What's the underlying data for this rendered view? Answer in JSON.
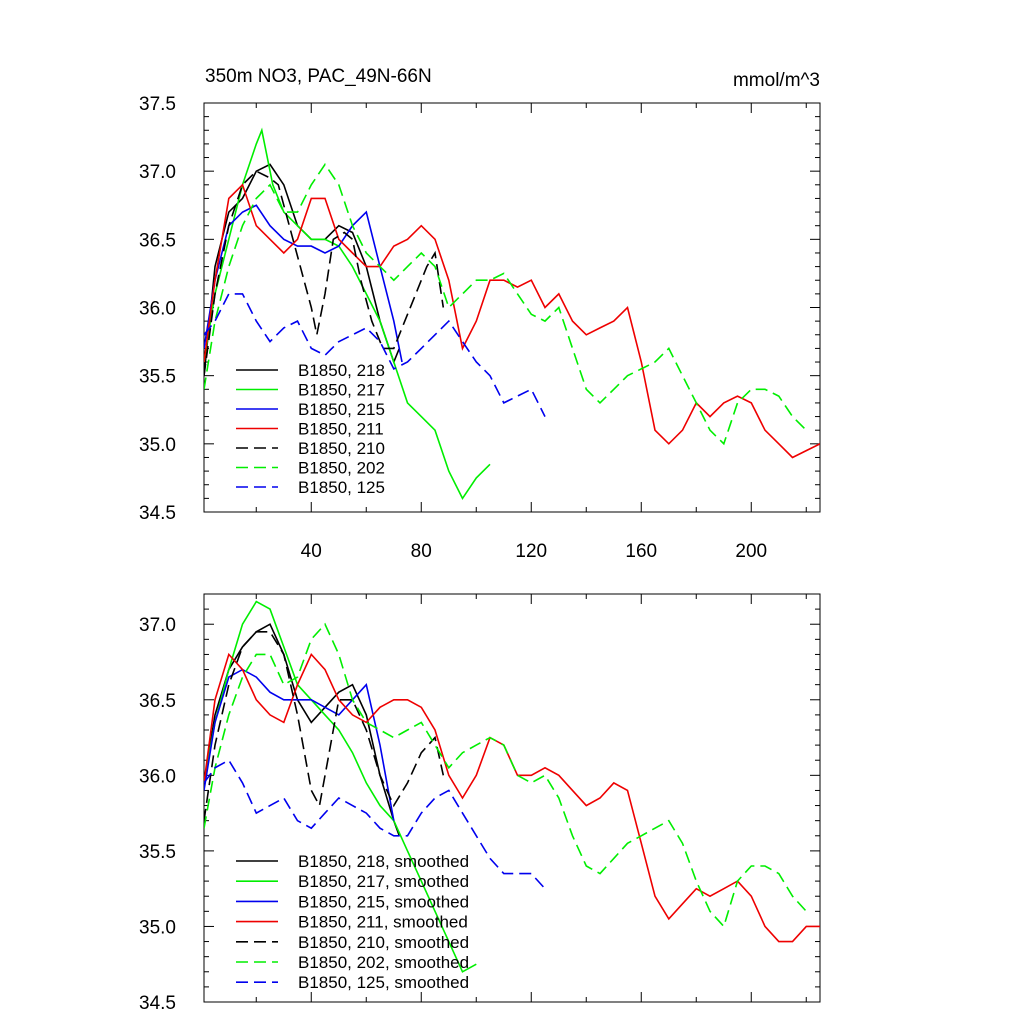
{
  "chart_data": [
    {
      "type": "line",
      "title_left": "350m NO3, PAC_49N-66N",
      "title_right": "mmol/m^3",
      "xlim": [
        1,
        225
      ],
      "ylim": [
        34.5,
        37.5
      ],
      "y_ticks": [
        34.5,
        35.0,
        35.5,
        36.0,
        36.5,
        37.0,
        37.5
      ],
      "y_tick_labels": [
        "34.5",
        "35.0",
        "35.5",
        "36.0",
        "36.5",
        "37.0",
        "37.5"
      ],
      "x_ticks": [
        40,
        80,
        120,
        160,
        200
      ],
      "x_tick_labels": [
        "40",
        "80",
        "120",
        "160",
        "200"
      ],
      "legend_position": "lower-left",
      "series": [
        {
          "name": "B1850, 218",
          "color": "#000000",
          "dash": "solid",
          "x": [
            1,
            5,
            10,
            15,
            20,
            25,
            30,
            35,
            40,
            45,
            50,
            55,
            60,
            65,
            70,
            72
          ],
          "y": [
            35.5,
            36.3,
            36.7,
            36.8,
            37.0,
            37.05,
            36.9,
            36.6,
            36.5,
            36.5,
            36.6,
            36.55,
            36.3,
            35.9,
            35.6,
            35.7
          ]
        },
        {
          "name": "B1850, 217",
          "color": "#00ee00",
          "dash": "solid",
          "x": [
            1,
            5,
            10,
            15,
            20,
            22,
            26,
            30,
            35,
            40,
            45,
            50,
            55,
            60,
            65,
            70,
            75,
            80,
            85,
            90,
            95,
            100,
            105
          ],
          "y": [
            35.6,
            36.1,
            36.5,
            36.9,
            37.2,
            37.3,
            36.9,
            36.7,
            36.6,
            36.5,
            36.5,
            36.45,
            36.3,
            36.1,
            35.9,
            35.6,
            35.3,
            35.2,
            35.1,
            34.8,
            34.6,
            34.75,
            34.85
          ]
        },
        {
          "name": "B1850, 215",
          "color": "#0000ee",
          "dash": "solid",
          "x": [
            1,
            5,
            10,
            15,
            20,
            25,
            30,
            35,
            40,
            45,
            50,
            55,
            60,
            65,
            70,
            73
          ],
          "y": [
            35.7,
            36.2,
            36.6,
            36.7,
            36.75,
            36.6,
            36.5,
            36.45,
            36.45,
            36.4,
            36.45,
            36.6,
            36.7,
            36.3,
            35.9,
            35.6
          ]
        },
        {
          "name": "B1850, 211",
          "color": "#ee0000",
          "dash": "solid",
          "x": [
            1,
            5,
            10,
            15,
            20,
            25,
            30,
            35,
            40,
            45,
            50,
            55,
            60,
            65,
            70,
            75,
            80,
            85,
            90,
            95,
            100,
            105,
            110,
            115,
            120,
            125,
            130,
            135,
            140,
            145,
            150,
            155,
            160,
            165,
            170,
            175,
            180,
            185,
            190,
            195,
            200,
            205,
            210,
            215,
            220,
            225
          ],
          "y": [
            35.6,
            36.2,
            36.8,
            36.9,
            36.6,
            36.5,
            36.4,
            36.5,
            36.8,
            36.8,
            36.5,
            36.4,
            36.3,
            36.3,
            36.45,
            36.5,
            36.6,
            36.5,
            36.2,
            35.7,
            35.9,
            36.2,
            36.2,
            36.15,
            36.2,
            36.0,
            36.1,
            35.9,
            35.8,
            35.85,
            35.9,
            36.0,
            35.6,
            35.1,
            35.0,
            35.1,
            35.3,
            35.2,
            35.3,
            35.35,
            35.3,
            35.1,
            35.0,
            34.9,
            34.95,
            35.0
          ]
        },
        {
          "name": "B1850, 210",
          "color": "#000000",
          "dash": "dashed",
          "x": [
            1,
            5,
            10,
            15,
            20,
            25,
            28,
            32,
            36,
            40,
            42,
            45,
            48,
            52,
            55,
            58,
            62,
            66,
            70,
            74,
            78,
            82,
            85,
            88
          ],
          "y": [
            35.5,
            36.1,
            36.6,
            36.9,
            37.0,
            36.95,
            36.9,
            36.6,
            36.3,
            36.0,
            35.8,
            36.1,
            36.5,
            36.55,
            36.5,
            36.2,
            35.9,
            35.7,
            35.7,
            35.9,
            36.1,
            36.3,
            36.4,
            36.0
          ]
        },
        {
          "name": "B1850, 202",
          "color": "#00ee00",
          "dash": "dashed",
          "x": [
            1,
            5,
            10,
            15,
            20,
            25,
            30,
            35,
            40,
            45,
            50,
            55,
            60,
            65,
            70,
            75,
            80,
            85,
            90,
            95,
            100,
            105,
            110,
            115,
            120,
            125,
            130,
            135,
            140,
            145,
            150,
            155,
            160,
            165,
            170,
            175,
            180,
            185,
            190,
            195,
            200,
            205,
            210,
            215,
            220
          ],
          "y": [
            35.4,
            35.9,
            36.3,
            36.6,
            36.8,
            36.9,
            36.7,
            36.7,
            36.9,
            37.05,
            36.9,
            36.6,
            36.4,
            36.3,
            36.2,
            36.3,
            36.4,
            36.3,
            36.0,
            36.1,
            36.2,
            36.2,
            36.25,
            36.1,
            35.95,
            35.9,
            36.0,
            35.7,
            35.4,
            35.3,
            35.4,
            35.5,
            35.55,
            35.6,
            35.7,
            35.5,
            35.3,
            35.1,
            35.0,
            35.3,
            35.4,
            35.4,
            35.35,
            35.2,
            35.1
          ]
        },
        {
          "name": "B1850, 125",
          "color": "#0000ee",
          "dash": "dashed",
          "x": [
            1,
            5,
            10,
            15,
            20,
            25,
            30,
            35,
            40,
            45,
            50,
            55,
            60,
            65,
            70,
            75,
            80,
            85,
            90,
            95,
            100,
            105,
            110,
            115,
            120,
            125
          ],
          "y": [
            35.8,
            35.9,
            36.1,
            36.1,
            35.9,
            35.75,
            35.85,
            35.9,
            35.7,
            35.65,
            35.75,
            35.8,
            35.85,
            35.75,
            35.55,
            35.6,
            35.7,
            35.8,
            35.9,
            35.75,
            35.6,
            35.5,
            35.3,
            35.35,
            35.4,
            35.2
          ]
        }
      ]
    },
    {
      "type": "line",
      "xlim": [
        1,
        225
      ],
      "ylim": [
        34.5,
        37.2
      ],
      "y_ticks": [
        34.5,
        35.0,
        35.5,
        36.0,
        36.5,
        37.0
      ],
      "y_tick_labels": [
        "34.5",
        "35.0",
        "35.5",
        "36.0",
        "36.5",
        "37.0"
      ],
      "x_ticks": [
        40,
        80,
        120,
        160,
        200
      ],
      "legend_position": "lower-left",
      "series": [
        {
          "name": "B1850, 218, smoothed",
          "color": "#000000",
          "dash": "solid",
          "x": [
            1,
            5,
            10,
            15,
            20,
            25,
            30,
            35,
            40,
            45,
            50,
            55,
            60,
            65,
            70,
            72
          ],
          "y": [
            35.95,
            36.4,
            36.7,
            36.85,
            36.95,
            37.0,
            36.8,
            36.5,
            36.35,
            36.45,
            36.55,
            36.6,
            36.4,
            36.0,
            35.7,
            35.6
          ]
        },
        {
          "name": "B1850, 217, smoothed",
          "color": "#00ee00",
          "dash": "solid",
          "x": [
            1,
            5,
            10,
            15,
            20,
            25,
            30,
            35,
            40,
            45,
            50,
            55,
            60,
            65,
            70,
            75,
            80,
            85,
            90,
            95,
            100
          ],
          "y": [
            35.95,
            36.35,
            36.7,
            37.0,
            37.15,
            37.1,
            36.85,
            36.6,
            36.5,
            36.4,
            36.3,
            36.15,
            35.95,
            35.8,
            35.7,
            35.5,
            35.3,
            35.1,
            34.9,
            34.7,
            34.75
          ]
        },
        {
          "name": "B1850, 215, smoothed",
          "color": "#0000ee",
          "dash": "solid",
          "x": [
            1,
            5,
            10,
            15,
            20,
            25,
            30,
            35,
            40,
            45,
            50,
            55,
            60,
            65,
            70
          ],
          "y": [
            35.9,
            36.35,
            36.65,
            36.7,
            36.65,
            36.55,
            36.5,
            36.5,
            36.5,
            36.45,
            36.4,
            36.5,
            36.6,
            36.2,
            35.7
          ]
        },
        {
          "name": "B1850, 211, smoothed",
          "color": "#ee0000",
          "dash": "solid",
          "x": [
            1,
            5,
            10,
            15,
            20,
            25,
            30,
            35,
            40,
            45,
            50,
            55,
            60,
            65,
            70,
            75,
            80,
            85,
            90,
            95,
            100,
            105,
            110,
            115,
            120,
            125,
            130,
            135,
            140,
            145,
            150,
            155,
            160,
            165,
            170,
            175,
            180,
            185,
            190,
            195,
            200,
            205,
            210,
            215,
            220,
            225
          ],
          "y": [
            35.95,
            36.5,
            36.8,
            36.7,
            36.5,
            36.4,
            36.35,
            36.6,
            36.8,
            36.7,
            36.5,
            36.4,
            36.35,
            36.45,
            36.5,
            36.5,
            36.45,
            36.3,
            36.0,
            35.85,
            36.0,
            36.25,
            36.2,
            36.0,
            36.0,
            36.05,
            36.0,
            35.9,
            35.8,
            35.85,
            35.95,
            35.9,
            35.55,
            35.2,
            35.05,
            35.15,
            35.25,
            35.2,
            35.25,
            35.3,
            35.2,
            35.0,
            34.9,
            34.9,
            35.0,
            35.0
          ]
        },
        {
          "name": "B1850, 210, smoothed",
          "color": "#000000",
          "dash": "dashed",
          "x": [
            1,
            5,
            10,
            15,
            20,
            25,
            30,
            35,
            40,
            43,
            46,
            50,
            55,
            60,
            65,
            70,
            75,
            80,
            85,
            88
          ],
          "y": [
            35.7,
            36.2,
            36.6,
            36.85,
            36.95,
            36.95,
            36.8,
            36.4,
            35.9,
            35.8,
            36.1,
            36.5,
            36.5,
            36.3,
            36.0,
            35.8,
            35.95,
            36.15,
            36.25,
            36.0
          ]
        },
        {
          "name": "B1850, 202, smoothed",
          "color": "#00ee00",
          "dash": "dashed",
          "x": [
            1,
            5,
            10,
            15,
            20,
            25,
            30,
            35,
            40,
            45,
            50,
            55,
            60,
            65,
            70,
            75,
            80,
            85,
            90,
            95,
            100,
            105,
            110,
            115,
            120,
            125,
            130,
            135,
            140,
            145,
            150,
            155,
            160,
            165,
            170,
            175,
            180,
            185,
            190,
            195,
            200,
            205,
            210,
            215,
            220
          ],
          "y": [
            35.65,
            36.05,
            36.4,
            36.65,
            36.8,
            36.8,
            36.6,
            36.65,
            36.9,
            37.0,
            36.8,
            36.5,
            36.35,
            36.3,
            36.25,
            36.3,
            36.35,
            36.2,
            36.05,
            36.15,
            36.2,
            36.25,
            36.2,
            36.0,
            35.95,
            36.0,
            35.85,
            35.6,
            35.4,
            35.35,
            35.45,
            35.55,
            35.6,
            35.65,
            35.7,
            35.55,
            35.3,
            35.1,
            35.0,
            35.3,
            35.4,
            35.4,
            35.35,
            35.2,
            35.1
          ]
        },
        {
          "name": "B1850, 125, smoothed",
          "color": "#0000ee",
          "dash": "dashed",
          "x": [
            1,
            5,
            10,
            15,
            20,
            25,
            30,
            35,
            40,
            45,
            50,
            55,
            60,
            65,
            70,
            75,
            80,
            85,
            90,
            95,
            100,
            105,
            110,
            115,
            120,
            125
          ],
          "y": [
            35.95,
            36.05,
            36.1,
            35.95,
            35.75,
            35.8,
            35.85,
            35.7,
            35.65,
            35.75,
            35.85,
            35.8,
            35.75,
            35.65,
            35.6,
            35.6,
            35.75,
            35.85,
            35.9,
            35.75,
            35.6,
            35.45,
            35.35,
            35.35,
            35.35,
            35.25
          ]
        }
      ]
    }
  ]
}
